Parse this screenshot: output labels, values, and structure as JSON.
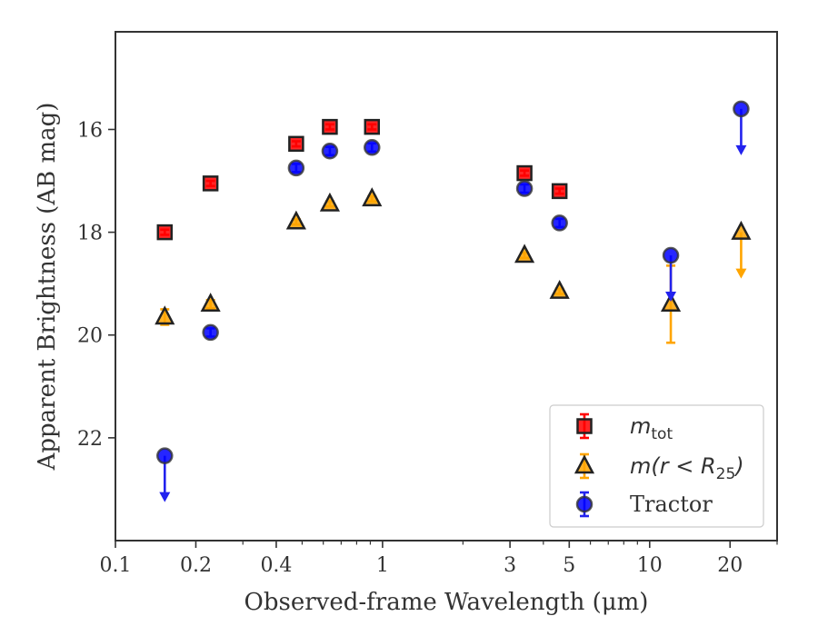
{
  "chart_data": {
    "type": "scatter",
    "xlabel": "Observed-frame Wavelength (μm)",
    "ylabel": "Apparent Brightness (AB mag)",
    "x_scale": "log",
    "xlim": [
      0.1,
      30
    ],
    "ylim": [
      24.0,
      14.1
    ],
    "y_inverted": true,
    "x_ticks": [
      {
        "value": 0.1,
        "label": "0.1"
      },
      {
        "value": 0.2,
        "label": "0.2"
      },
      {
        "value": 0.4,
        "label": "0.4"
      },
      {
        "value": 1,
        "label": "1"
      },
      {
        "value": 3,
        "label": "3"
      },
      {
        "value": 5,
        "label": "5"
      },
      {
        "value": 10,
        "label": "10"
      },
      {
        "value": 20,
        "label": "20"
      }
    ],
    "x_minor_ticks": [
      0.3,
      0.5,
      0.6,
      0.7,
      0.8,
      0.9,
      2,
      4,
      6,
      7,
      8,
      9,
      30
    ],
    "y_ticks": [
      {
        "value": 16,
        "label": "16"
      },
      {
        "value": 18,
        "label": "18"
      },
      {
        "value": 20,
        "label": "20"
      },
      {
        "value": 22,
        "label": "22"
      }
    ],
    "grid": false,
    "legend_position": "bottom-right",
    "series": [
      {
        "name": "m_tot",
        "marker": "square",
        "color": "#ff0000",
        "edge_color": "#222222",
        "error_color": "#ff0000",
        "points": [
          {
            "x": 0.153,
            "y": 18.0,
            "err": 0.05
          },
          {
            "x": 0.227,
            "y": 17.05,
            "err": 0.05
          },
          {
            "x": 0.475,
            "y": 16.28,
            "err": 0.05
          },
          {
            "x": 0.635,
            "y": 15.95,
            "err": 0.05
          },
          {
            "x": 0.913,
            "y": 15.95,
            "err": 0.05
          },
          {
            "x": 3.4,
            "y": 16.85,
            "err": 0.05
          },
          {
            "x": 4.6,
            "y": 17.2,
            "err": 0.05
          }
        ]
      },
      {
        "name": "m(r < R25)",
        "marker": "triangle",
        "color": "#ffa500",
        "edge_color": "#222222",
        "error_color": "#ffa500",
        "points": [
          {
            "x": 0.153,
            "y": 19.65,
            "err": 0.15
          },
          {
            "x": 0.227,
            "y": 19.4,
            "err": 0.08
          },
          {
            "x": 0.475,
            "y": 17.8,
            "err": 0.05
          },
          {
            "x": 0.635,
            "y": 17.45,
            "err": 0.05
          },
          {
            "x": 0.913,
            "y": 17.35,
            "err": 0.05
          },
          {
            "x": 3.4,
            "y": 18.45,
            "err": 0.05
          },
          {
            "x": 4.6,
            "y": 19.15,
            "err": 0.05
          },
          {
            "x": 12.0,
            "y": 19.4,
            "err": 0.75
          },
          {
            "x": 22.0,
            "y": 18.0,
            "upper_limit": true
          }
        ]
      },
      {
        "name": "Tractor",
        "marker": "circle",
        "color": "#0000ff",
        "edge_color": "#333333",
        "error_color": "#2222ee",
        "points": [
          {
            "x": 0.153,
            "y": 22.35,
            "upper_limit": true
          },
          {
            "x": 0.227,
            "y": 19.95,
            "err": 0.08
          },
          {
            "x": 0.475,
            "y": 16.75,
            "err": 0.08
          },
          {
            "x": 0.635,
            "y": 16.42,
            "err": 0.08
          },
          {
            "x": 0.913,
            "y": 16.35,
            "err": 0.08
          },
          {
            "x": 3.4,
            "y": 17.15,
            "err": 0.08
          },
          {
            "x": 4.6,
            "y": 17.82,
            "err": 0.08
          },
          {
            "x": 12.0,
            "y": 18.45,
            "upper_limit": true
          },
          {
            "x": 22.0,
            "y": 15.6,
            "upper_limit": true
          }
        ]
      }
    ],
    "legend": [
      {
        "series": 0,
        "label": "m",
        "subscript": "tot",
        "math": true
      },
      {
        "series": 1,
        "label": "m(r < R",
        "subscript": "25",
        "suffix": ")",
        "math": true
      },
      {
        "series": 2,
        "label": "Tractor",
        "math": false
      }
    ]
  }
}
